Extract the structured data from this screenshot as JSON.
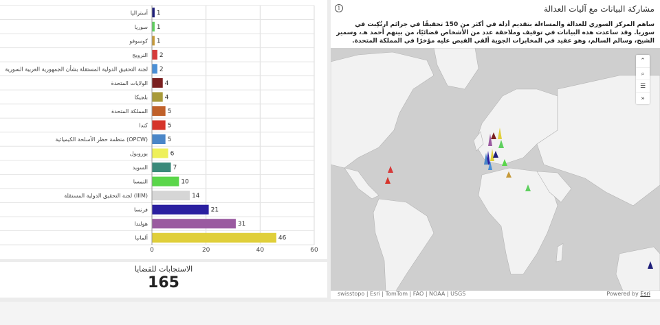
{
  "chart_data": {
    "type": "bar",
    "orientation": "horizontal",
    "categories": [
      "أستراليا",
      "سوريا",
      "كوسوفو",
      "النرويج",
      "لجنة التحقيق الدولية المستقلة بشأن الجمهورية العربية السورية",
      "الولايات المتحدة",
      "بلجيكا",
      "المملكة المتحدة",
      "كندا",
      "منظمة حظر الأسلحة الكيميائية (OPCW)",
      "يوروبول",
      "السويد",
      "النمسا",
      "لجنة التحقيق الدولية المستقلة (IIIM)",
      "فرنسا",
      "هولندا",
      "ألمانيا"
    ],
    "values": [
      1,
      1,
      1,
      2,
      2,
      4,
      4,
      5,
      5,
      5,
      6,
      7,
      10,
      14,
      21,
      31,
      46
    ],
    "colors": [
      "#1f1f7a",
      "#5fcf5f",
      "#c69a3a",
      "#d63a3a",
      "#4a8fd6",
      "#7a1f1f",
      "#a89a3a",
      "#c0612a",
      "#d6342a",
      "#4a86c8",
      "#eef05a",
      "#3a8a7a",
      "#5ad64a",
      "#d6d6d6",
      "#2a1fa0",
      "#9a5aa0",
      "#e0cf3a"
    ],
    "xlim": [
      0,
      60
    ],
    "xticks": [
      "0",
      "20",
      "40",
      "60"
    ],
    "grid": true
  },
  "kpi": {
    "title": "الاستجابات للقضايا",
    "value": "165"
  },
  "map": {
    "title": "مشاركة البيانات مع آليات العدالة",
    "info_icon": "i",
    "description": "ساهم المركز السوري للعدالة والمساءلة بتقديم أدلة في أكثر من 150 تحقيقًا في جرائم ارتُكِبت في سوريا. وقد ساعدت هذه البيانات في توقيف وملاحقة عدد من الأشخاص قضائيًا، من بينهم أحمد هـ، وسمير الشيخ، وسالم السالم، وهو عقيد في المخابرات الجوية ألقي القبض عليه مؤخرًا في المملكة المتحدة.",
    "attribution": "swisstopo | Esri | TomTom | FAO | NOAA | USGS",
    "powered_prefix": "Powered by",
    "powered_link": "Esri",
    "tools": [
      {
        "icon": "expand-up-icon",
        "glyph": "⌃"
      },
      {
        "icon": "search-icon",
        "glyph": "⌕"
      },
      {
        "icon": "list-icon",
        "glyph": "☰"
      },
      {
        "icon": "forward-icon",
        "glyph": "»"
      }
    ]
  }
}
